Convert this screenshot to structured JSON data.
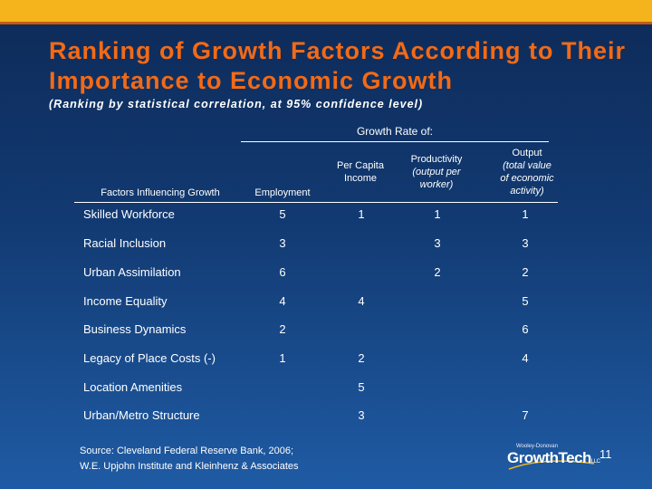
{
  "slide": {
    "title": "Ranking of Growth Factors According to Their Importance to Economic Growth",
    "subtitle": "(Ranking by statistical correlation, at 95% confidence level)",
    "group_header": "Growth Rate of:",
    "columns": {
      "factor": "Factors Influencing Growth",
      "employment": "Employment",
      "per_capita_1": "Per Capita",
      "per_capita_2": "Income",
      "productivity_1": "Productivity",
      "productivity_2": "(output per",
      "productivity_3": "worker)",
      "output_1": "Output",
      "output_2": "(total value",
      "output_3": "of economic",
      "output_4": "activity)"
    },
    "rows": [
      {
        "factor": "Skilled Workforce",
        "employment": "5",
        "per_capita": "1",
        "productivity": "1",
        "output": "1"
      },
      {
        "factor": "Racial Inclusion",
        "employment": "3",
        "per_capita": "",
        "productivity": "3",
        "output": "3"
      },
      {
        "factor": "Urban Assimilation",
        "employment": "6",
        "per_capita": "",
        "productivity": "2",
        "output": "2"
      },
      {
        "factor": "Income Equality",
        "employment": "4",
        "per_capita": "4",
        "productivity": "",
        "output": "5"
      },
      {
        "factor": "Business Dynamics",
        "employment": "2",
        "per_capita": "",
        "productivity": "",
        "output": "6"
      },
      {
        "factor": "Legacy of Place Costs (-)",
        "employment": "1",
        "per_capita": "2",
        "productivity": "",
        "output": "4"
      },
      {
        "factor": "Location Amenities",
        "employment": "",
        "per_capita": "5",
        "productivity": "",
        "output": ""
      },
      {
        "factor": "Urban/Metro Structure",
        "employment": "",
        "per_capita": "3",
        "productivity": "",
        "output": "7"
      }
    ],
    "source_line_1": "Source: Cleveland Federal Reserve Bank, 2006;",
    "source_line_2": "W.E. Upjohn Institute and Kleinhenz & Associates",
    "logo_top": "Wooley-Donovan",
    "logo_main": "GrowthTech",
    "logo_suffix": "LLC",
    "page_number": "11",
    "colors": {
      "accent_bar": "#f5b31c",
      "accent_line": "#c55a10",
      "title": "#f36a16",
      "background_top": "#0d2a58",
      "background_bottom": "#1f5ba4"
    }
  }
}
